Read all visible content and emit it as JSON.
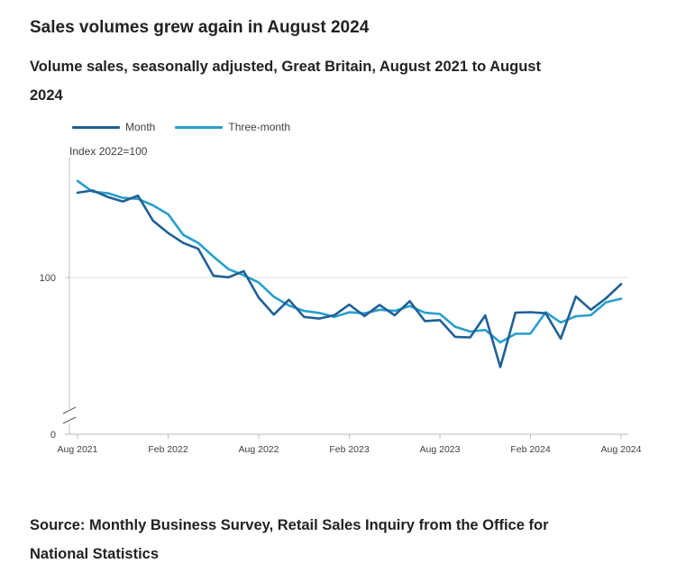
{
  "header": {
    "title": "Sales volumes grew again in August 2024",
    "subtitle": "Volume sales, seasonally adjusted, Great Britain, August 2021 to August 2024"
  },
  "footer": {
    "source": "Source: Monthly Business Survey, Retail Sales Inquiry from the Office for National Statistics"
  },
  "colors": {
    "month": "#206095",
    "three_month": "#27a0cc",
    "axis": "#bebebe",
    "grid": "#e0e0e0",
    "text": "#414042"
  },
  "chart_data": {
    "type": "line",
    "title": "Volume sales, seasonally adjusted, Great Britain, August 2021 to August 2024",
    "ylabel": "Index 2022=100",
    "xlabel": "",
    "ylim": [
      0,
      175
    ],
    "y_axis_break": true,
    "yticks": [
      0,
      100
    ],
    "legend_position": "top-left",
    "x_ticks": [
      {
        "index": 0,
        "label": "Aug 2021"
      },
      {
        "index": 6,
        "label": "Feb 2022"
      },
      {
        "index": 12,
        "label": "Aug 2022"
      },
      {
        "index": 18,
        "label": "Feb 2023"
      },
      {
        "index": 24,
        "label": "Aug 2023"
      },
      {
        "index": 30,
        "label": "Feb 2024"
      },
      {
        "index": 36,
        "label": "Aug 2024"
      }
    ],
    "categories": [
      "Aug 2021",
      "Sep 2021",
      "Oct 2021",
      "Nov 2021",
      "Dec 2021",
      "Jan 2022",
      "Feb 2022",
      "Mar 2022",
      "Apr 2022",
      "May 2022",
      "Jun 2022",
      "Jul 2022",
      "Aug 2022",
      "Sep 2022",
      "Oct 2022",
      "Nov 2022",
      "Dec 2022",
      "Jan 2023",
      "Feb 2023",
      "Mar 2023",
      "Apr 2023",
      "May 2023",
      "Jun 2023",
      "Jul 2023",
      "Aug 2023",
      "Sep 2023",
      "Oct 2023",
      "Nov 2023",
      "Dec 2023",
      "Jan 2024",
      "Feb 2024",
      "Mar 2024",
      "Apr 2024",
      "May 2024",
      "Jun 2024",
      "Jul 2024",
      "Aug 2024"
    ],
    "series": [
      {
        "name": "Month",
        "values": [
          154.1,
          155.5,
          151.4,
          148.5,
          152.2,
          136.2,
          128.4,
          122.0,
          118.3,
          101.1,
          100.1,
          104.1,
          87.1,
          76.3,
          85.8,
          74.8,
          73.8,
          75.9,
          82.7,
          75.4,
          82.5,
          75.9,
          84.9,
          72.2,
          72.8,
          62.1,
          61.8,
          75.8,
          42.9,
          77.6,
          77.9,
          77.2,
          61.0,
          87.9,
          79.4,
          86.8,
          95.8
        ]
      },
      {
        "name": "Three-month",
        "values": [
          161.6,
          154.7,
          153.8,
          150.8,
          150.2,
          146.0,
          140.4,
          127.2,
          122.0,
          113.3,
          105.3,
          101.5,
          96.8,
          87.7,
          82.1,
          78.7,
          77.4,
          74.8,
          77.8,
          77.1,
          79.4,
          78.7,
          81.8,
          77.5,
          76.7,
          68.6,
          65.5,
          66.5,
          58.6,
          64.1,
          64.2,
          77.8,
          71.3,
          75.3,
          76.0,
          84.2,
          86.5
        ]
      }
    ]
  }
}
